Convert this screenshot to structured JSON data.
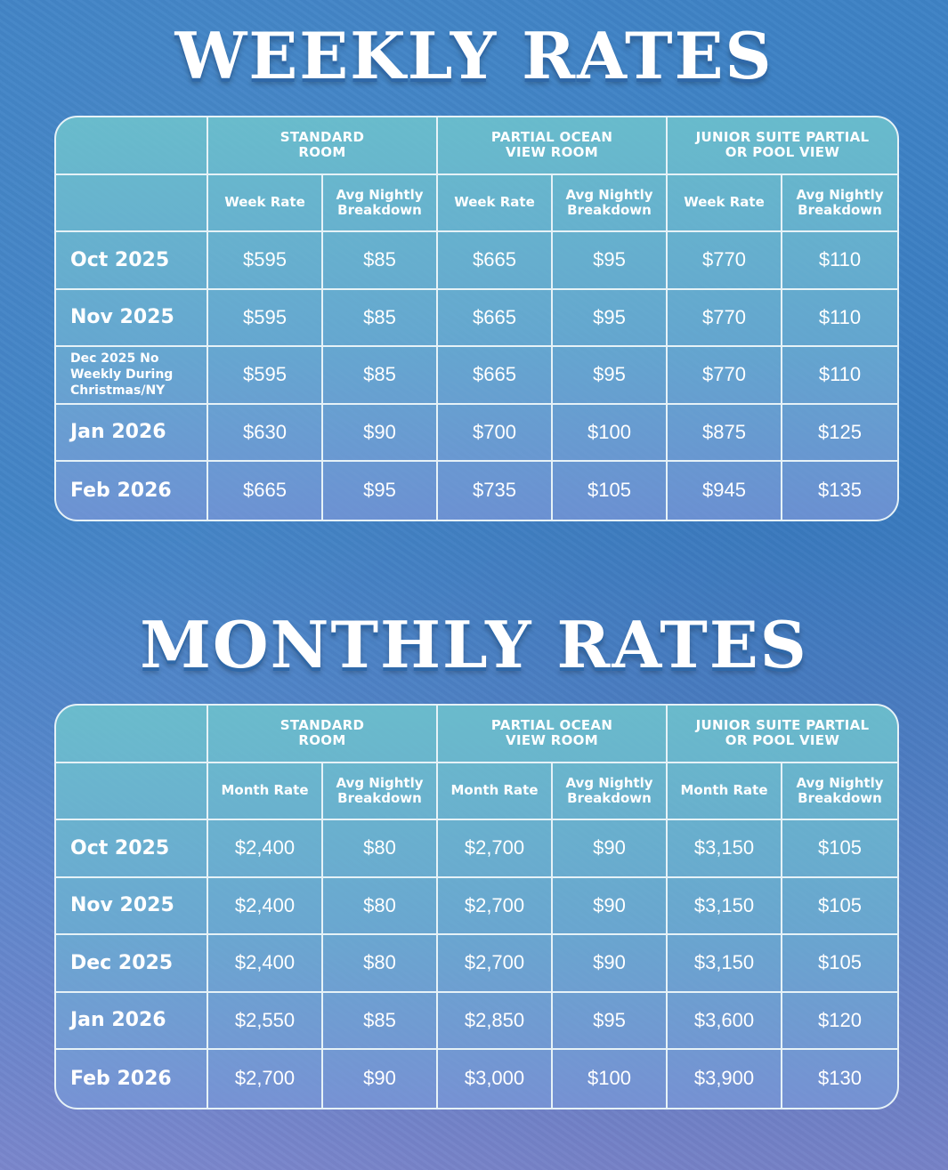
{
  "weekly": {
    "title": "WEEKLY RATES",
    "groups": [
      {
        "line1": "STANDARD",
        "line2": "ROOM"
      },
      {
        "line1": "PARTIAL OCEAN",
        "line2": "VIEW ROOM"
      },
      {
        "line1": "JUNIOR SUITE PARTIAL",
        "line2": "OR POOL VIEW"
      }
    ],
    "sub": {
      "rate": "Week Rate",
      "avg1": "Avg Nightly",
      "avg2": "Breakdown"
    },
    "rows": [
      {
        "label": "Oct 2025",
        "v": [
          "$595",
          "$85",
          "$665",
          "$95",
          "$770",
          "$110"
        ]
      },
      {
        "label": "Nov 2025",
        "v": [
          "$595",
          "$85",
          "$665",
          "$95",
          "$770",
          "$110"
        ]
      },
      {
        "label1": "Dec 2025 No",
        "label2": "Weekly During",
        "label3": "Christmas/NY",
        "v": [
          "$595",
          "$85",
          "$665",
          "$95",
          "$770",
          "$110"
        ]
      },
      {
        "label": "Jan 2026",
        "v": [
          "$630",
          "$90",
          "$700",
          "$100",
          "$875",
          "$125"
        ]
      },
      {
        "label": "Feb 2026",
        "v": [
          "$665",
          "$95",
          "$735",
          "$105",
          "$945",
          "$135"
        ]
      }
    ]
  },
  "monthly": {
    "title": "MONTHLY RATES",
    "groups": [
      {
        "line1": "STANDARD",
        "line2": "ROOM"
      },
      {
        "line1": "PARTIAL OCEAN",
        "line2": "VIEW ROOM"
      },
      {
        "line1": "JUNIOR SUITE PARTIAL",
        "line2": "OR POOL VIEW"
      }
    ],
    "sub": {
      "rate": "Month Rate",
      "avg1": "Avg Nightly",
      "avg2": "Breakdown"
    },
    "rows": [
      {
        "label": "Oct 2025",
        "v": [
          "$2,400",
          "$80",
          "$2,700",
          "$90",
          "$3,150",
          "$105"
        ]
      },
      {
        "label": "Nov 2025",
        "v": [
          "$2,400",
          "$80",
          "$2,700",
          "$90",
          "$3,150",
          "$105"
        ]
      },
      {
        "label": "Dec 2025",
        "v": [
          "$2,400",
          "$80",
          "$2,700",
          "$90",
          "$3,150",
          "$105"
        ]
      },
      {
        "label": "Jan 2026",
        "v": [
          "$2,550",
          "$85",
          "$2,850",
          "$95",
          "$3,600",
          "$120"
        ]
      },
      {
        "label": "Feb 2026",
        "v": [
          "$2,700",
          "$90",
          "$3,000",
          "$100",
          "$3,900",
          "$130"
        ]
      }
    ]
  }
}
